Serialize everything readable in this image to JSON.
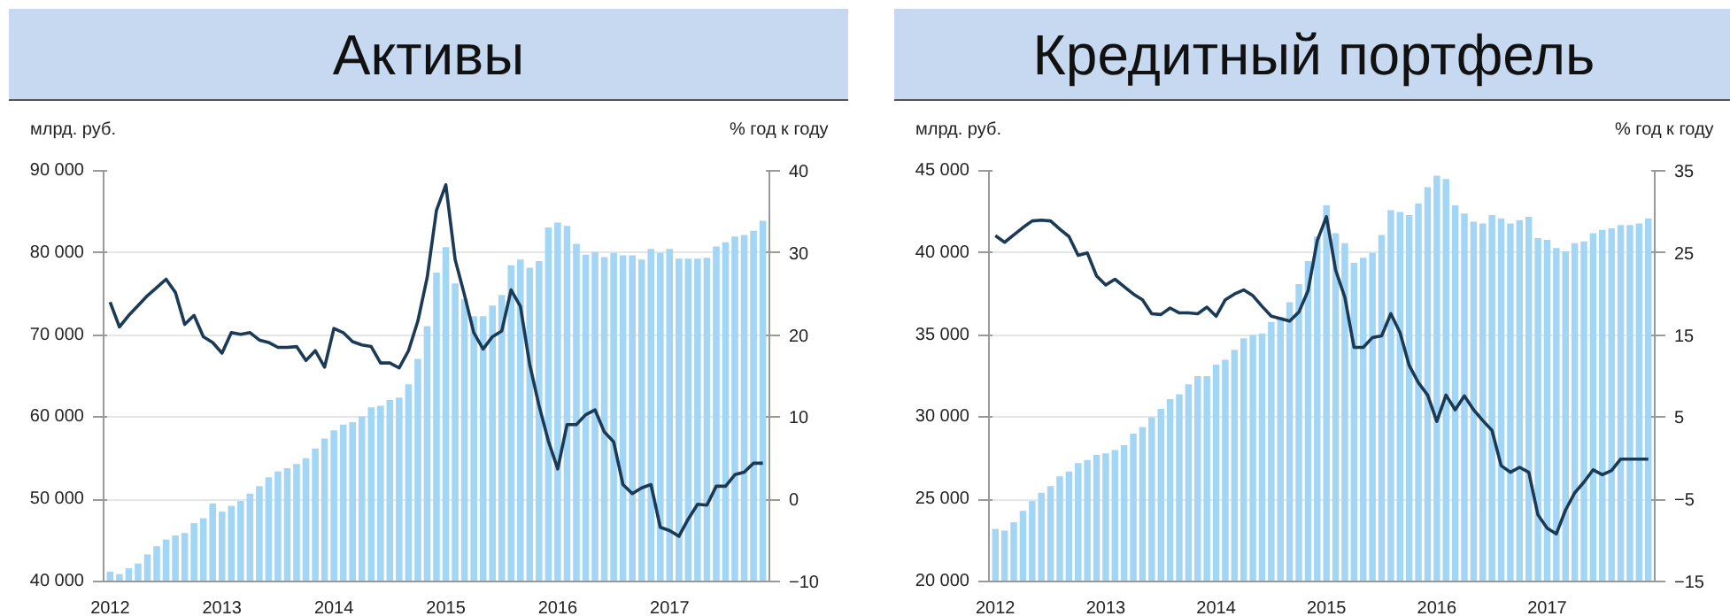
{
  "chart_data": [
    {
      "type": "bar",
      "title": "Активы",
      "ylabel": "млрд. руб.",
      "y2label": "% год к году",
      "grid": "y",
      "categories": [
        "2012",
        null,
        null,
        null,
        null,
        null,
        null,
        null,
        null,
        null,
        null,
        null,
        "2013",
        null,
        null,
        null,
        null,
        null,
        null,
        null,
        null,
        null,
        null,
        null,
        "2014",
        null,
        null,
        null,
        null,
        null,
        null,
        null,
        null,
        null,
        null,
        null,
        "2015",
        null,
        null,
        null,
        null,
        null,
        null,
        null,
        null,
        null,
        null,
        null,
        "2016",
        null,
        null,
        null,
        null,
        null,
        null,
        null,
        null,
        null,
        null,
        null,
        "2017",
        null,
        null,
        null,
        null,
        null,
        null,
        null,
        null,
        null,
        null
      ],
      "ylim": [
        40000,
        90000
      ],
      "yticks": [
        {
          "value": 40000,
          "label": "40 000"
        },
        {
          "value": 50000,
          "label": "50 000"
        },
        {
          "value": 60000,
          "label": "60 000"
        },
        {
          "value": 70000,
          "label": "70 000"
        },
        {
          "value": 80000,
          "label": "80 000"
        },
        {
          "value": 90000,
          "label": "90 000"
        }
      ],
      "y2lim": [
        -10,
        40
      ],
      "y2ticks": [
        -10,
        0,
        10,
        20,
        30,
        40
      ],
      "series": [
        {
          "color": "#a3d5f5",
          "values": [
            41200,
            40900,
            41600,
            42200,
            43300,
            44300,
            45100,
            45600,
            45900,
            47100,
            47700,
            49500,
            48500,
            49200,
            49800,
            50700,
            51600,
            52700,
            53400,
            53800,
            54300,
            55000,
            56200,
            57400,
            58400,
            59100,
            59400,
            60100,
            61200,
            61400,
            62100,
            62400,
            64000,
            67100,
            71100,
            77600,
            80700,
            76300,
            74400,
            72300,
            72300,
            73600,
            74900,
            78500,
            79200,
            78200,
            79000,
            83100,
            83700,
            83300,
            81100,
            79800,
            80100,
            79500,
            80000,
            79700,
            79700,
            79200,
            80500,
            80000,
            80500,
            79300,
            79300,
            79300,
            79400,
            80800,
            81300,
            82000,
            82200,
            82700,
            83900
          ]
        },
        {
          "type": "line",
          "axis": "y2",
          "color": "#1a3a56",
          "values": [
            24.0,
            21.0,
            22.4,
            23.6,
            24.8,
            25.8,
            26.8,
            25.2,
            21.3,
            22.4,
            19.8,
            19.1,
            17.8,
            20.3,
            20.1,
            20.3,
            19.4,
            19.1,
            18.5,
            18.5,
            18.6,
            16.9,
            18.1,
            16.1,
            20.8,
            20.3,
            19.2,
            18.8,
            18.6,
            16.6,
            16.6,
            16.0,
            18.1,
            21.7,
            27.0,
            35.2,
            38.3,
            29.2,
            24.9,
            20.3,
            18.3,
            19.8,
            20.5,
            25.5,
            23.5,
            16.4,
            11.4,
            7.1,
            3.7,
            9.1,
            9.1,
            10.3,
            10.9,
            8.2,
            7.0,
            1.8,
            0.7,
            1.4,
            1.8,
            -3.4,
            -3.8,
            -4.5,
            -2.4,
            -0.6,
            -0.7,
            1.6,
            1.6,
            3.0,
            3.3,
            4.4,
            4.4
          ]
        }
      ]
    },
    {
      "type": "bar",
      "title": "Кредитный портфель",
      "ylabel": "млрд. руб.",
      "y2label": "% год к году",
      "grid": "y",
      "categories": [
        "2012",
        null,
        null,
        null,
        null,
        null,
        null,
        null,
        null,
        null,
        null,
        null,
        "2013",
        null,
        null,
        null,
        null,
        null,
        null,
        null,
        null,
        null,
        null,
        null,
        "2014",
        null,
        null,
        null,
        null,
        null,
        null,
        null,
        null,
        null,
        null,
        null,
        "2015",
        null,
        null,
        null,
        null,
        null,
        null,
        null,
        null,
        null,
        null,
        null,
        "2016",
        null,
        null,
        null,
        null,
        null,
        null,
        null,
        null,
        null,
        null,
        null,
        "2017",
        null,
        null,
        null,
        null,
        null,
        null,
        null,
        null,
        null,
        null,
        null
      ],
      "ylim": [
        20000,
        45000
      ],
      "yticks": [
        {
          "value": 20000,
          "label": "20 000"
        },
        {
          "value": 25000,
          "label": "25 000"
        },
        {
          "value": 30000,
          "label": "30 000"
        },
        {
          "value": 35000,
          "label": "35 000"
        },
        {
          "value": 40000,
          "label": "40 000"
        },
        {
          "value": 45000,
          "label": "45 000"
        }
      ],
      "y2lim": [
        -15,
        35
      ],
      "y2ticks": [
        -15,
        -5,
        5,
        15,
        25,
        35
      ],
      "series": [
        {
          "color": "#a3d5f5",
          "values": [
            23200,
            23100,
            23600,
            24300,
            24900,
            25400,
            25800,
            26400,
            26700,
            27200,
            27400,
            27700,
            27800,
            28000,
            28300,
            29000,
            29400,
            30000,
            30500,
            31100,
            31400,
            32000,
            32500,
            32500,
            33200,
            33500,
            34100,
            34800,
            35000,
            35100,
            35800,
            36100,
            37000,
            38100,
            39500,
            41000,
            42900,
            41200,
            40600,
            39400,
            39700,
            40000,
            41100,
            42600,
            42500,
            42300,
            43000,
            44000,
            44700,
            44500,
            42900,
            42400,
            41900,
            41800,
            42300,
            42100,
            41800,
            42000,
            42200,
            40900,
            40800,
            40300,
            40100,
            40600,
            40700,
            41200,
            41400,
            41500,
            41700,
            41700,
            41800,
            42100
          ]
        },
        {
          "type": "line",
          "axis": "y2",
          "color": "#1a3a56",
          "values": [
            27.1,
            26.3,
            27.2,
            28.1,
            28.9,
            29.0,
            28.9,
            27.9,
            27.0,
            24.7,
            25.0,
            22.2,
            21.1,
            21.8,
            20.9,
            20.0,
            19.3,
            17.6,
            17.5,
            18.3,
            17.7,
            17.7,
            17.6,
            18.4,
            17.3,
            19.3,
            20.0,
            20.5,
            19.8,
            18.5,
            17.3,
            17.0,
            16.7,
            17.8,
            20.4,
            26.5,
            29.4,
            22.9,
            19.6,
            13.5,
            13.5,
            14.7,
            14.9,
            17.6,
            15.3,
            11.3,
            9.2,
            7.7,
            4.5,
            7.7,
            5.9,
            7.6,
            5.9,
            4.6,
            3.4,
            -0.9,
            -1.7,
            -1.1,
            -1.7,
            -6.9,
            -8.5,
            -9.2,
            -6.3,
            -4.2,
            -2.9,
            -1.4,
            -2.0,
            -1.5,
            -0.1,
            -0.1,
            -0.1,
            -0.1
          ]
        }
      ]
    }
  ]
}
